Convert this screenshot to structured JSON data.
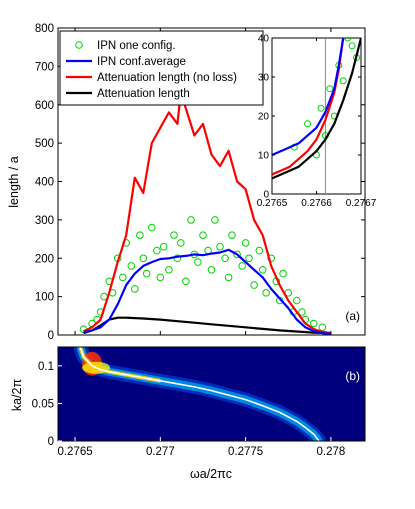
{
  "chart_data": [
    {
      "type": "line",
      "ylabel": "length / a",
      "xlim": [
        0.2764,
        0.2782
      ],
      "ylim": [
        0,
        800
      ],
      "yticks": [
        0,
        100,
        200,
        300,
        400,
        500,
        600,
        700,
        800
      ],
      "panel_label": "(a)",
      "legend": {
        "placement": "top-left"
      },
      "series": [
        {
          "name": "IPN one config.",
          "style": "scatter-open-circle",
          "color": "#00d400",
          "x": [
            0.27655,
            0.2766,
            0.27663,
            0.27665,
            0.27667,
            0.2767,
            0.27672,
            0.27675,
            0.27678,
            0.2768,
            0.27683,
            0.27685,
            0.27688,
            0.2769,
            0.27692,
            0.27695,
            0.27698,
            0.277,
            0.27702,
            0.27705,
            0.27708,
            0.2771,
            0.27712,
            0.27715,
            0.27718,
            0.2772,
            0.27722,
            0.27725,
            0.27728,
            0.2773,
            0.27732,
            0.27735,
            0.27738,
            0.2774,
            0.27742,
            0.27745,
            0.27748,
            0.2775,
            0.27752,
            0.27755,
            0.27758,
            0.2776,
            0.27762,
            0.27765,
            0.27768,
            0.2777,
            0.27772,
            0.27775,
            0.27778,
            0.2778,
            0.27783,
            0.27785,
            0.2779,
            0.27795
          ],
          "y": [
            15,
            30,
            40,
            60,
            100,
            140,
            110,
            200,
            150,
            240,
            180,
            120,
            260,
            200,
            160,
            280,
            220,
            150,
            230,
            170,
            260,
            200,
            240,
            140,
            300,
            210,
            190,
            260,
            220,
            170,
            300,
            230,
            200,
            150,
            260,
            210,
            180,
            240,
            200,
            130,
            220,
            170,
            110,
            200,
            140,
            90,
            160,
            110,
            60,
            90,
            60,
            40,
            30,
            20
          ]
        },
        {
          "name": "IPN conf.average",
          "style": "line",
          "color": "#0000ff",
          "x": [
            0.27655,
            0.2766,
            0.27665,
            0.2767,
            0.27675,
            0.2768,
            0.27685,
            0.2769,
            0.27695,
            0.277,
            0.27705,
            0.2771,
            0.27715,
            0.2772,
            0.27725,
            0.2773,
            0.27735,
            0.2774,
            0.27745,
            0.2775,
            0.27755,
            0.2776,
            0.27765,
            0.2777,
            0.27775,
            0.2778,
            0.27785,
            0.2779,
            0.27795,
            0.278
          ],
          "y": [
            8,
            12,
            20,
            40,
            80,
            130,
            160,
            180,
            190,
            198,
            200,
            204,
            206,
            210,
            208,
            212,
            215,
            222,
            210,
            190,
            170,
            150,
            120,
            95,
            70,
            40,
            20,
            10,
            5,
            3
          ]
        },
        {
          "name": "Attenuation length (no loss)",
          "style": "line",
          "color": "#ff0000",
          "x": [
            0.27655,
            0.2766,
            0.27665,
            0.2767,
            0.27675,
            0.2768,
            0.27685,
            0.2769,
            0.27695,
            0.277,
            0.27705,
            0.2771,
            0.27712,
            0.27715,
            0.2772,
            0.27725,
            0.2773,
            0.27735,
            0.2774,
            0.27745,
            0.2775,
            0.27755,
            0.2776,
            0.27765,
            0.2777,
            0.27775,
            0.2778,
            0.27785,
            0.2779,
            0.27795,
            0.278
          ],
          "y": [
            10,
            20,
            40,
            110,
            190,
            260,
            410,
            370,
            500,
            540,
            580,
            550,
            630,
            590,
            520,
            550,
            470,
            440,
            480,
            400,
            380,
            300,
            260,
            180,
            130,
            90,
            60,
            30,
            15,
            8,
            5
          ]
        },
        {
          "name": "Attenuation length",
          "style": "line",
          "color": "#000000",
          "x": [
            0.27655,
            0.2766,
            0.27665,
            0.2767,
            0.27675,
            0.2768,
            0.2769,
            0.277,
            0.2771,
            0.2772,
            0.2773,
            0.2774,
            0.2775,
            0.2776,
            0.2777,
            0.2778,
            0.2779,
            0.278
          ],
          "y": [
            5,
            12,
            25,
            40,
            45,
            45,
            43,
            40,
            36,
            32,
            28,
            24,
            20,
            16,
            12,
            9,
            6,
            5
          ]
        }
      ]
    },
    {
      "type": "line",
      "role": "inset",
      "xlim": [
        0.2765,
        0.2767
      ],
      "ylim": [
        0,
        40
      ],
      "xtick_labels": [
        "0.2765",
        "0.2766",
        "0.2767"
      ],
      "ytick_labels": [
        "0",
        "10",
        "20",
        "30",
        "40"
      ],
      "vertical_marker_x": 0.27662,
      "series": [
        {
          "name": "IPN one config.",
          "style": "scatter-open-circle",
          "color": "#00d400",
          "x": [
            0.27655,
            0.27658,
            0.2766,
            0.27661,
            0.27662,
            0.27663,
            0.27664,
            0.27665,
            0.27666,
            0.27667,
            0.27668,
            0.27669
          ],
          "y": [
            12,
            18,
            10,
            22,
            15,
            27,
            20,
            33,
            29,
            40,
            38,
            35
          ]
        },
        {
          "name": "IPN conf.average",
          "style": "line",
          "color": "#0000ff",
          "x": [
            0.2765,
            0.27652,
            0.27654,
            0.27656,
            0.27658,
            0.2766,
            0.27662,
            0.27664,
            0.27665,
            0.27666
          ],
          "y": [
            10,
            11,
            12,
            13,
            15,
            17,
            21,
            27,
            33,
            40
          ]
        },
        {
          "name": "Attenuation length (no loss)",
          "style": "line",
          "color": "#ff0000",
          "x": [
            0.2765,
            0.27652,
            0.27654,
            0.27656,
            0.27658,
            0.2766,
            0.27662,
            0.27664,
            0.27665,
            0.27666
          ],
          "y": [
            5,
            6,
            7,
            9,
            11,
            14,
            19,
            26,
            32,
            40
          ]
        },
        {
          "name": "Attenuation length",
          "style": "line",
          "color": "#000000",
          "x": [
            0.2765,
            0.27652,
            0.27654,
            0.27656,
            0.27658,
            0.2766,
            0.27662,
            0.27664,
            0.27666,
            0.27668,
            0.2767
          ],
          "y": [
            4,
            5,
            6,
            7,
            9,
            11,
            14,
            18,
            24,
            31,
            40
          ]
        }
      ]
    },
    {
      "type": "heatmap",
      "xlabel": "ωa/2πc",
      "ylabel": "ka/2π",
      "xlim": [
        0.2764,
        0.2782
      ],
      "ylim": [
        0,
        0.125
      ],
      "xtick_labels": [
        "0.2765",
        "0.277",
        "0.2775",
        "0.278"
      ],
      "yticks": [
        0,
        0.05,
        0.1
      ],
      "panel_label": "(b)",
      "background_color": "#00007f",
      "band": {
        "x": [
          0.27653,
          0.27655,
          0.2766,
          0.27665,
          0.2767,
          0.2768,
          0.2769,
          0.277,
          0.2771,
          0.2772,
          0.2773,
          0.2774,
          0.2775,
          0.2776,
          0.2777,
          0.2778,
          0.27785,
          0.2779,
          0.27793
        ],
        "y": [
          0.125,
          0.112,
          0.1,
          0.095,
          0.092,
          0.088,
          0.084,
          0.08,
          0.076,
          0.072,
          0.067,
          0.061,
          0.055,
          0.047,
          0.038,
          0.026,
          0.018,
          0.009,
          0.0
        ]
      }
    }
  ]
}
